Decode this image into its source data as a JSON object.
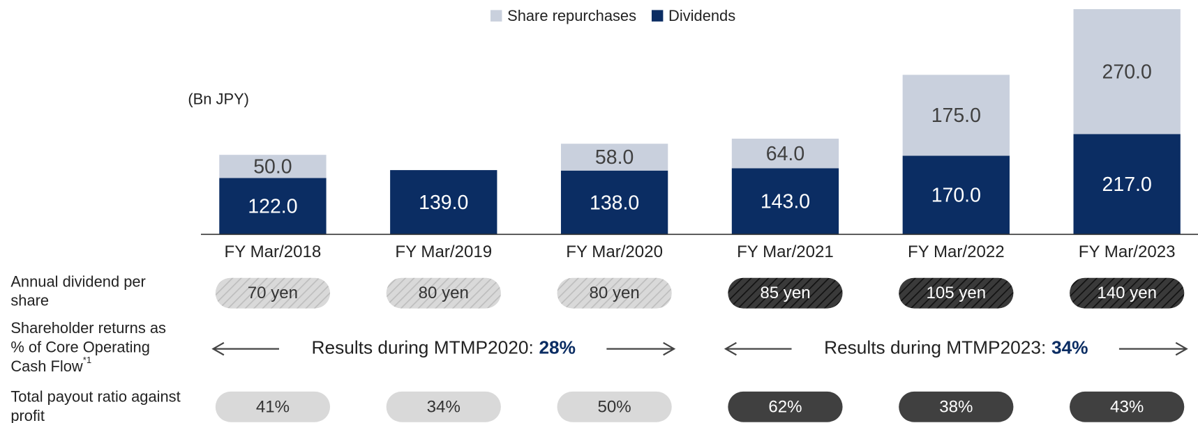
{
  "chart_data": {
    "type": "bar",
    "stacked": true,
    "unit_label": "(Bn JPY)",
    "categories": [
      "FY Mar/2018",
      "FY Mar/2019",
      "FY Mar/2020",
      "FY Mar/2021",
      "FY Mar/2022",
      "FY Mar/2023"
    ],
    "series": [
      {
        "name": "Dividends",
        "color": "#0b2d63",
        "label_color": "#ffffff",
        "values": [
          122,
          139,
          138,
          143,
          170,
          217
        ],
        "value_labels": [
          "122.0",
          "139.0",
          "138.0",
          "143.0",
          "170.0",
          "217.0"
        ]
      },
      {
        "name": "Share repurchases",
        "color": "#c9d0dd",
        "label_color": "#404040",
        "values": [
          50,
          null,
          58,
          64,
          175,
          270
        ],
        "value_labels": [
          "50.0",
          null,
          "58.0",
          "64.0",
          "175.0",
          "270.0"
        ]
      }
    ],
    "legend_order": [
      1,
      0
    ],
    "legend": "top",
    "ylim": [
      0,
      490
    ],
    "grid": false,
    "dividend_per_share": {
      "label": [
        "Annual dividend per",
        "share"
      ],
      "values": [
        "70 yen",
        "80 yen",
        "80 yen",
        "85 yen",
        "105 yen",
        "140 yen"
      ],
      "fills": [
        "#d9d9d9",
        "#d9d9d9",
        "#d9d9d9",
        "#3a3a3a",
        "#3a3a3a",
        "#3a3a3a"
      ],
      "text_colors": [
        "#333333",
        "#333333",
        "#333333",
        "#ffffff",
        "#ffffff",
        "#ffffff"
      ]
    },
    "core_ocf_returns": {
      "label": [
        "Shareholder returns as",
        "% of Core Operating",
        "Cash Flow"
      ],
      "footnote_mark": "*1",
      "periods": [
        {
          "label": "Results during MTMP2020:",
          "value": "28%",
          "from": 0,
          "to": 2
        },
        {
          "label": "Results during MTMP2023:",
          "value": "34%",
          "from": 3,
          "to": 5
        }
      ],
      "value_color": "#0b2d63"
    },
    "total_payout_ratio": {
      "label": [
        "Total payout ratio against",
        "profit"
      ],
      "values": [
        "41%",
        "34%",
        "50%",
        "62%",
        "38%",
        "43%"
      ],
      "fills": [
        "#d9d9d9",
        "#d9d9d9",
        "#d9d9d9",
        "#404040",
        "#404040",
        "#404040"
      ],
      "text_colors": [
        "#333333",
        "#333333",
        "#333333",
        "#ffffff",
        "#ffffff",
        "#ffffff"
      ]
    }
  }
}
